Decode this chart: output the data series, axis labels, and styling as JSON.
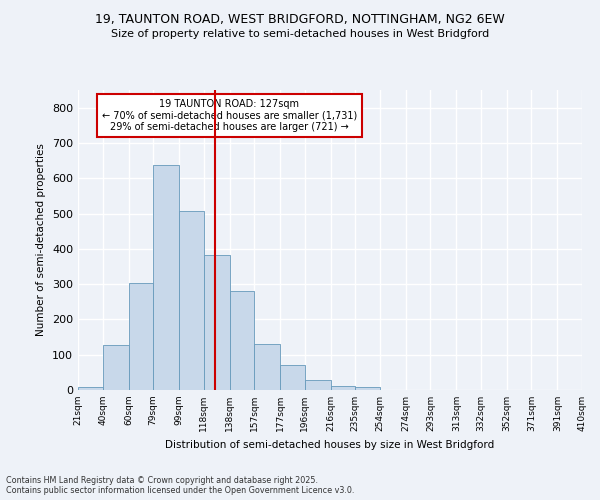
{
  "title1": "19, TAUNTON ROAD, WEST BRIDGFORD, NOTTINGHAM, NG2 6EW",
  "title2": "Size of property relative to semi-detached houses in West Bridgford",
  "xlabel": "Distribution of semi-detached houses by size in West Bridgford",
  "ylabel": "Number of semi-detached properties",
  "footnote1": "Contains HM Land Registry data © Crown copyright and database right 2025.",
  "footnote2": "Contains public sector information licensed under the Open Government Licence v3.0.",
  "annotation_title": "19 TAUNTON ROAD: 127sqm",
  "annotation_line1": "← 70% of semi-detached houses are smaller (1,731)",
  "annotation_line2": "29% of semi-detached houses are larger (721) →",
  "bin_edges": [
    21,
    40,
    60,
    79,
    99,
    118,
    138,
    157,
    177,
    196,
    216,
    235,
    254,
    274,
    293,
    313,
    332,
    352,
    371,
    391,
    410
  ],
  "bar_heights": [
    8,
    128,
    302,
    638,
    507,
    383,
    280,
    130,
    70,
    28,
    12,
    8,
    0,
    0,
    0,
    0,
    0,
    0,
    0,
    0
  ],
  "bar_color": "#c8d8ea",
  "bar_edge_color": "#6699bb",
  "vline_color": "#cc0000",
  "vline_x": 127,
  "ylim": [
    0,
    850
  ],
  "yticks": [
    0,
    100,
    200,
    300,
    400,
    500,
    600,
    700,
    800
  ],
  "background_color": "#eef2f8",
  "grid_color": "#ffffff",
  "annotation_box_color": "#ffffff",
  "annotation_box_edge": "#cc0000"
}
